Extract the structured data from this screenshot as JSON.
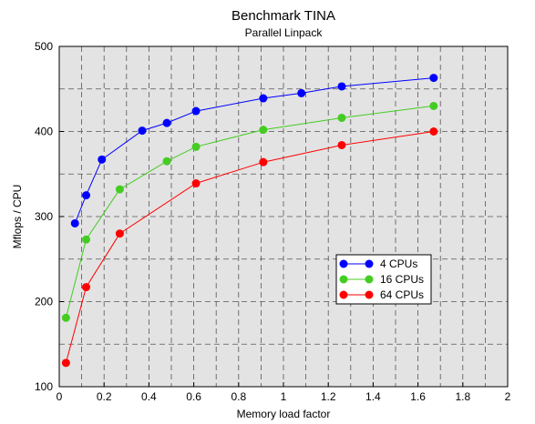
{
  "chart_data": {
    "type": "line",
    "title": "Benchmark TINA",
    "subtitle": "Parallel Linpack",
    "xlabel": "Memory load factor",
    "ylabel": "Mflops / CPU",
    "xlim": [
      0,
      2
    ],
    "ylim": [
      100,
      500
    ],
    "x_ticks": [
      0,
      0.2,
      0.4,
      0.6,
      0.8,
      1,
      1.2,
      1.4,
      1.6,
      1.8,
      2
    ],
    "x_tick_labels": [
      "0",
      "0.2",
      "0.4",
      "0.6",
      "0.8",
      "1",
      "1.2",
      "1.4",
      "1.6",
      "1.8",
      "2"
    ],
    "y_ticks": [
      100,
      200,
      300,
      400,
      500
    ],
    "y_tick_labels": [
      "100",
      "200",
      "300",
      "400",
      "500"
    ],
    "grid": true,
    "plot_background": "#e3e3e3",
    "legend_position": "center-right",
    "series": [
      {
        "name": "4 CPUs",
        "color": "#0000ff",
        "x": [
          0.07,
          0.12,
          0.19,
          0.37,
          0.48,
          0.61,
          0.91,
          1.08,
          1.26,
          1.67
        ],
        "y": [
          292,
          325,
          367,
          401,
          410,
          424,
          439,
          445,
          453,
          463
        ]
      },
      {
        "name": "16 CPUs",
        "color": "#44cc22",
        "x": [
          0.03,
          0.12,
          0.27,
          0.48,
          0.61,
          0.91,
          1.26,
          1.67
        ],
        "y": [
          181,
          273,
          332,
          365,
          382,
          402,
          416,
          430
        ]
      },
      {
        "name": "64 CPUs",
        "color": "#ff0000",
        "x": [
          0.03,
          0.12,
          0.27,
          0.61,
          0.91,
          1.26,
          1.67
        ],
        "y": [
          128,
          217,
          280,
          339,
          364,
          384,
          400
        ]
      }
    ]
  }
}
